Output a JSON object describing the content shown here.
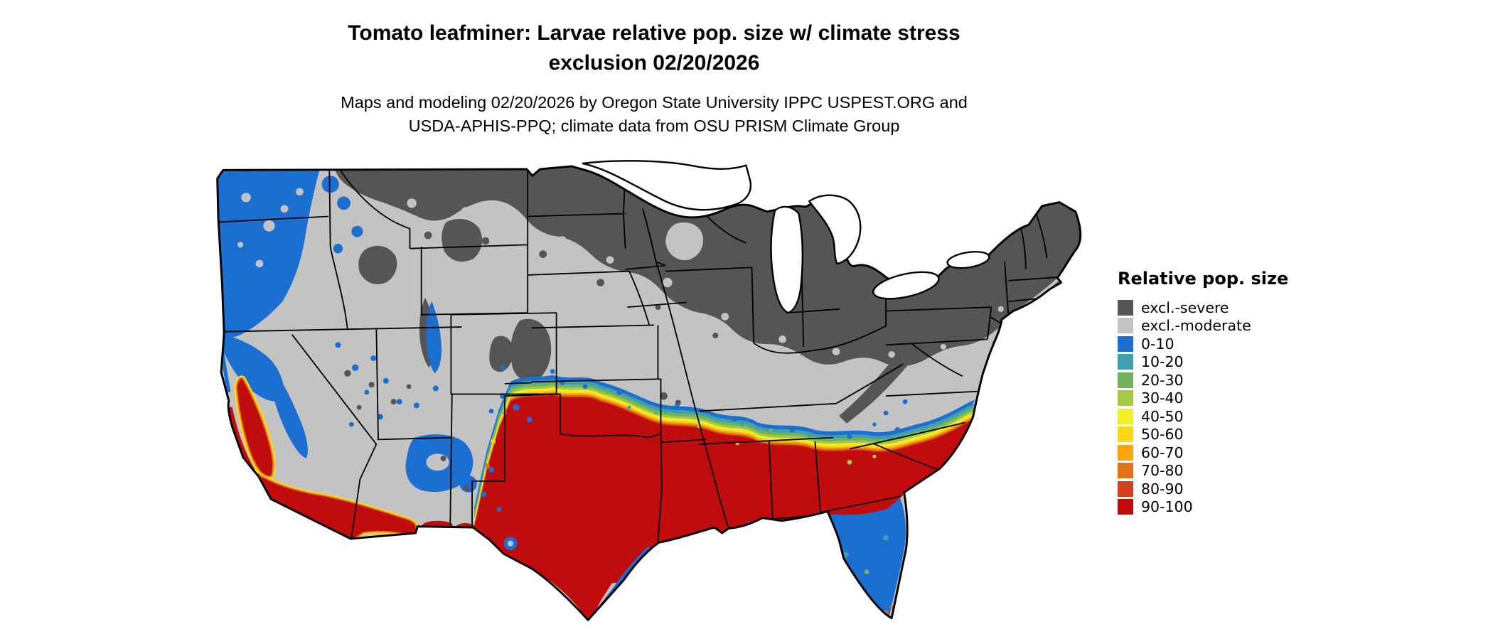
{
  "header": {
    "title_line1": "Tomato leafminer: Larvae relative pop. size w/ climate stress",
    "title_line2": "exclusion 02/20/2026",
    "subtitle_line1": "Maps and modeling 02/20/2026 by Oregon State University IPPC USPEST.ORG and",
    "subtitle_line2": "USDA-APHIS-PPQ; climate data from OSU PRISM Climate Group"
  },
  "legend": {
    "title": "Relative pop. size",
    "entries": [
      {
        "label": "excl.-severe",
        "color": "#555555"
      },
      {
        "label": "excl.-moderate",
        "color": "#c3c3c3"
      },
      {
        "label": "0-10",
        "color": "#1b6fd1"
      },
      {
        "label": "10-20",
        "color": "#3fa0ad"
      },
      {
        "label": "20-30",
        "color": "#72b25e"
      },
      {
        "label": "30-40",
        "color": "#a6c943"
      },
      {
        "label": "40-50",
        "color": "#f0ef2a"
      },
      {
        "label": "50-60",
        "color": "#fed816"
      },
      {
        "label": "60-70",
        "color": "#fca40c"
      },
      {
        "label": "70-80",
        "color": "#e1731d"
      },
      {
        "label": "80-90",
        "color": "#d63f1e"
      },
      {
        "label": "90-100",
        "color": "#c00c0c"
      }
    ]
  }
}
